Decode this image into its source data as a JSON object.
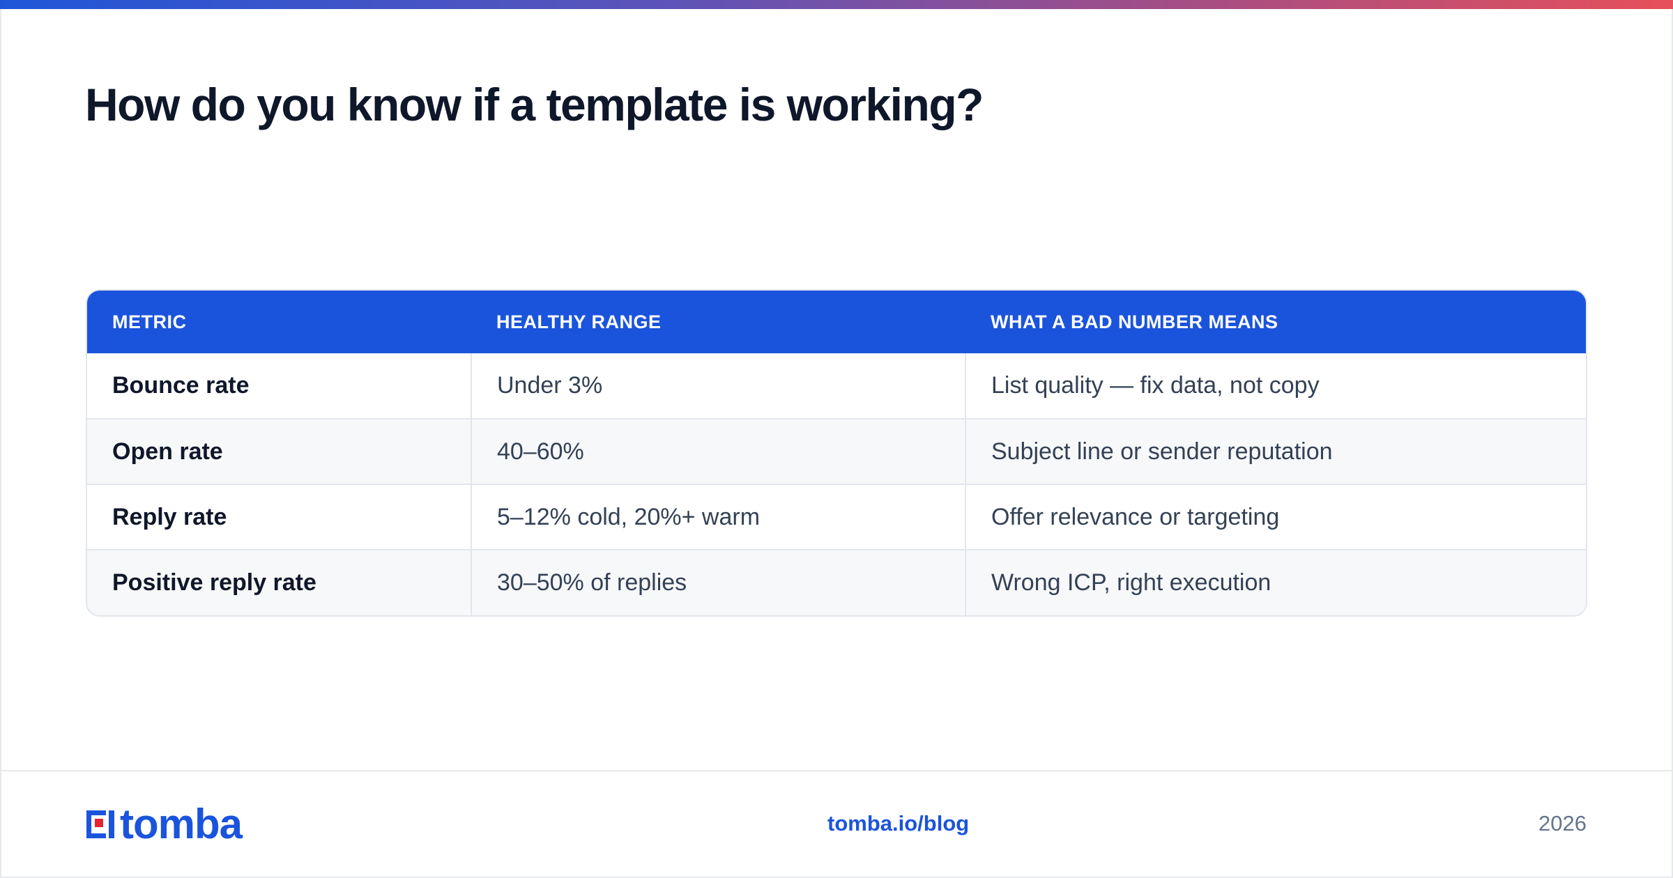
{
  "title": "How do you know if a template is working?",
  "table": {
    "headers": [
      "METRIC",
      "HEALTHY RANGE",
      "WHAT A BAD NUMBER MEANS"
    ],
    "rows": [
      [
        "Bounce rate",
        "Under 3%",
        "List quality — fix data, not copy"
      ],
      [
        "Open rate",
        "40–60%",
        "Subject line or sender reputation"
      ],
      [
        "Reply rate",
        "5–12% cold, 20%+ warm",
        "Offer relevance or targeting"
      ],
      [
        "Positive reply rate",
        "30–50% of replies",
        "Wrong ICP, right execution"
      ]
    ]
  },
  "footer": {
    "brand": "tomba",
    "link": "tomba.io/blog",
    "year": "2026"
  },
  "colors": {
    "accent": "#1b54dc",
    "logo_red": "#e8232f",
    "gradient_start": "#1f56d8",
    "gradient_end": "#e6505a"
  }
}
